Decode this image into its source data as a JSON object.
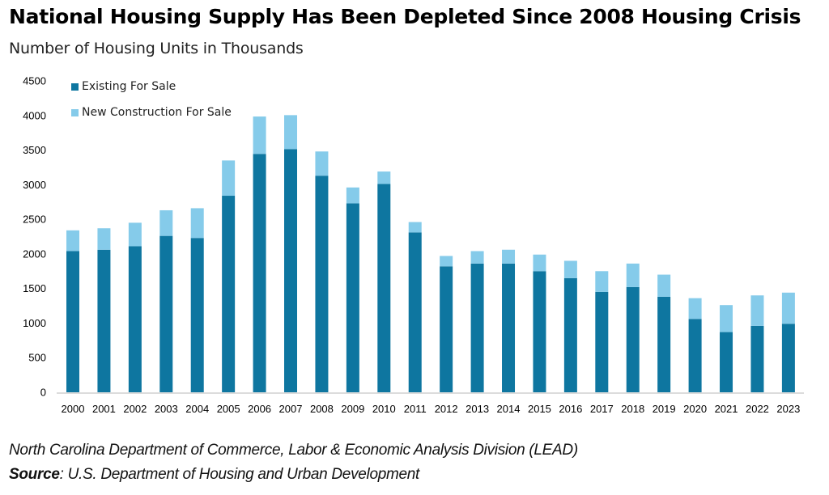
{
  "chart_data": {
    "type": "bar",
    "stacked": true,
    "title": "National Housing Supply Has Been Depleted Since 2008 Housing Crisis",
    "subtitle": "Number of Housing Units in Thousands",
    "xlabel": "",
    "ylabel": "",
    "ylim": [
      0,
      4500
    ],
    "yticks": [
      0,
      500,
      1000,
      1500,
      2000,
      2500,
      3000,
      3500,
      4000,
      4500
    ],
    "grid": false,
    "legend_position": "top-left",
    "categories": [
      "2000",
      "2001",
      "2002",
      "2003",
      "2004",
      "2005",
      "2006",
      "2007",
      "2008",
      "2009",
      "2010",
      "2011",
      "2012",
      "2013",
      "2014",
      "2015",
      "2016",
      "2017",
      "2018",
      "2019",
      "2020",
      "2021",
      "2022",
      "2023"
    ],
    "series": [
      {
        "name": "Existing For Sale",
        "color": "#0e76a0",
        "values": [
          2040,
          2060,
          2110,
          2260,
          2230,
          2840,
          3445,
          3515,
          3130,
          2730,
          3010,
          2310,
          1820,
          1860,
          1860,
          1750,
          1650,
          1450,
          1520,
          1380,
          1060,
          870,
          960,
          990
        ]
      },
      {
        "name": "New Construction For Sale",
        "color": "#85cbea",
        "values": [
          300,
          310,
          340,
          370,
          430,
          510,
          540,
          490,
          350,
          230,
          180,
          150,
          150,
          180,
          200,
          240,
          250,
          300,
          340,
          320,
          300,
          390,
          440,
          450
        ]
      }
    ]
  },
  "footer": {
    "line1": "North Carolina Department of Commerce, Labor & Economic Analysis Division (LEAD)",
    "source_label": "Source",
    "source_text": ": U.S. Department of Housing and Urban Development"
  }
}
